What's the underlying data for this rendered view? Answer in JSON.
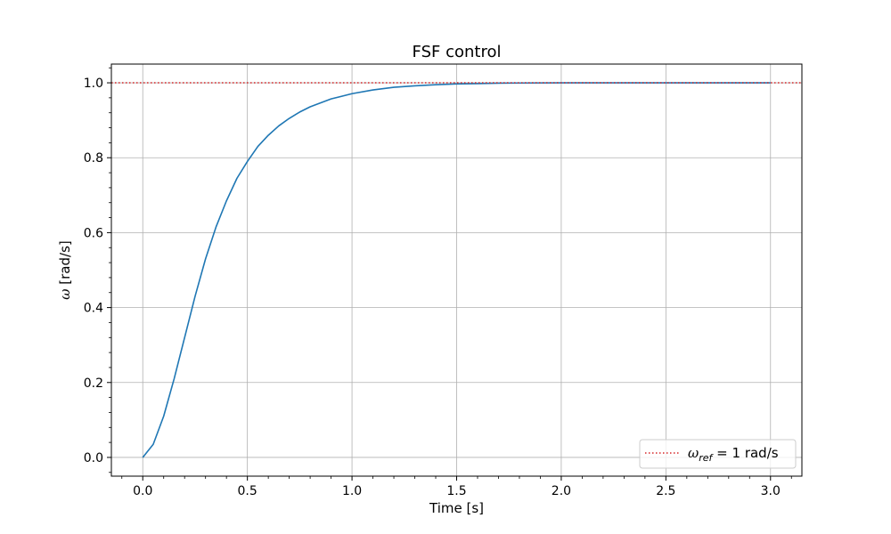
{
  "chart_data": {
    "type": "line",
    "title": "FSF control",
    "xlabel": "Time [s]",
    "ylabel_symbol": "ω",
    "ylabel_unit": "[rad/s]",
    "xlim": [
      -0.15,
      3.15
    ],
    "ylim": [
      -0.05,
      1.05
    ],
    "xticks": [
      0.0,
      0.5,
      1.0,
      1.5,
      2.0,
      2.5,
      3.0
    ],
    "xtick_labels": [
      "0.0",
      "0.5",
      "1.0",
      "1.5",
      "2.0",
      "2.5",
      "3.0"
    ],
    "yticks": [
      0.0,
      0.2,
      0.4,
      0.6,
      0.8,
      1.0
    ],
    "ytick_labels": [
      "0.0",
      "0.2",
      "0.4",
      "0.6",
      "0.8",
      "1.0"
    ],
    "grid": true,
    "legend_position": "lower-right",
    "series": [
      {
        "color": "#1f77b4",
        "style": "solid",
        "x": [
          0.0,
          0.05,
          0.1,
          0.15,
          0.2,
          0.25,
          0.3,
          0.35,
          0.4,
          0.45,
          0.5,
          0.55,
          0.6,
          0.65,
          0.7,
          0.75,
          0.8,
          0.9,
          1.0,
          1.1,
          1.2,
          1.3,
          1.4,
          1.5,
          1.6,
          1.7,
          1.8,
          2.0,
          2.5,
          3.0
        ],
        "y": [
          0.0,
          0.035,
          0.11,
          0.21,
          0.32,
          0.43,
          0.53,
          0.615,
          0.685,
          0.745,
          0.79,
          0.83,
          0.86,
          0.885,
          0.905,
          0.922,
          0.936,
          0.957,
          0.971,
          0.981,
          0.988,
          0.992,
          0.995,
          0.997,
          0.998,
          0.999,
          0.9995,
          1.0,
          1.0,
          1.0
        ]
      },
      {
        "name_symbol": "ω",
        "name_sub": "ref",
        "name_rest": " = 1 rad/s",
        "color": "#d62728",
        "style": "dotted",
        "y_const": 1.0
      }
    ]
  }
}
